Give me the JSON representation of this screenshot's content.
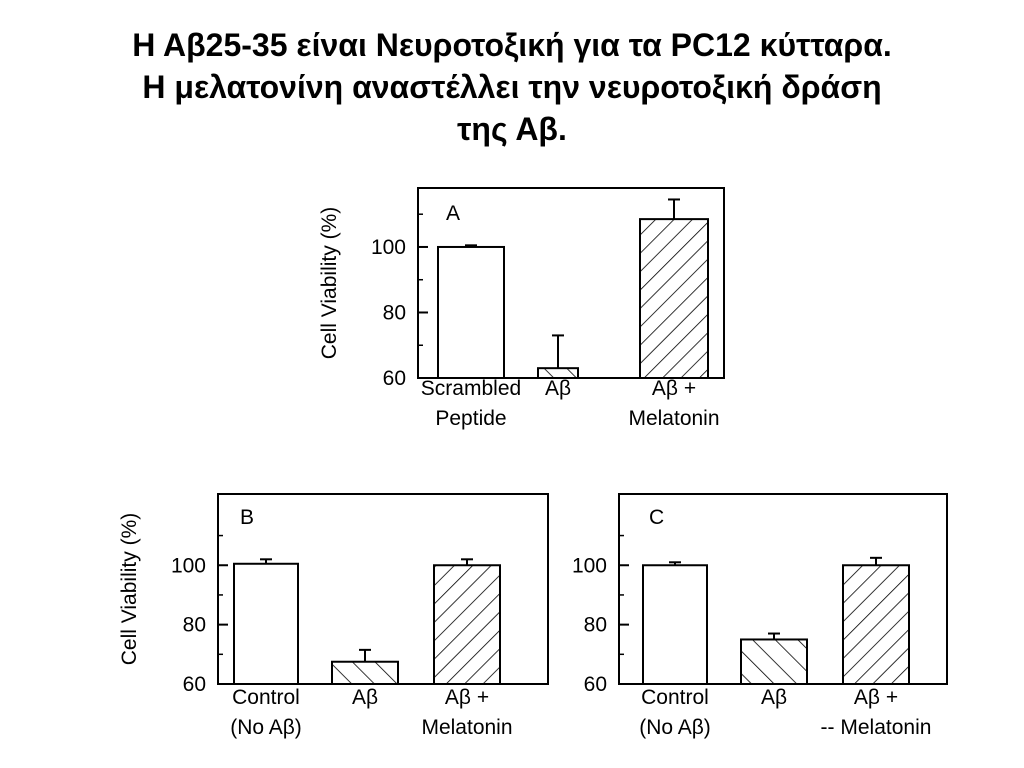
{
  "title": {
    "line1": "Η Αβ25-35 είναι Νευροτοξική για τα PC12 κύτταρα.",
    "line2": "Η μελατονίνη αναστέλλει την νευροτοξική δράση",
    "line3": "της Αβ."
  },
  "chart_data": [
    {
      "type": "bar",
      "panel": "A",
      "ylabel": "Cell Viability (%)",
      "yticks": [
        60,
        80,
        100
      ],
      "ylim": [
        60,
        118
      ],
      "categories": [
        [
          "Scrambled",
          "Peptide"
        ],
        [
          "Aβ"
        ],
        [
          "Aβ  +",
          "Melatonin"
        ]
      ],
      "values": [
        100,
        63,
        108.5
      ],
      "errors": [
        0.5,
        10,
        6
      ],
      "fills": [
        "open",
        "hatch-sparse",
        "hatch-dense"
      ]
    },
    {
      "type": "bar",
      "panel": "B",
      "ylabel": "Cell Viability (%)",
      "yticks": [
        60,
        80,
        100
      ],
      "ylim": [
        60,
        124
      ],
      "categories": [
        [
          "Control",
          "(No Aβ)"
        ],
        [
          "Aβ"
        ],
        [
          "Aβ  +",
          "Melatonin"
        ]
      ],
      "values": [
        100.5,
        67.5,
        100
      ],
      "errors": [
        1.5,
        4,
        2
      ],
      "fills": [
        "open",
        "hatch-sparse",
        "hatch-dense"
      ]
    },
    {
      "type": "bar",
      "panel": "C",
      "ylabel": "",
      "yticks": [
        60,
        80,
        100
      ],
      "ylim": [
        60,
        124
      ],
      "categories": [
        [
          "Control",
          "(No Aβ)"
        ],
        [
          "Aβ"
        ],
        [
          "Aβ  +",
          "-- Melatonin"
        ]
      ],
      "values": [
        100,
        75,
        100
      ],
      "errors": [
        1,
        2,
        2.5
      ],
      "fills": [
        "open",
        "hatch-sparse",
        "hatch-dense"
      ]
    }
  ]
}
